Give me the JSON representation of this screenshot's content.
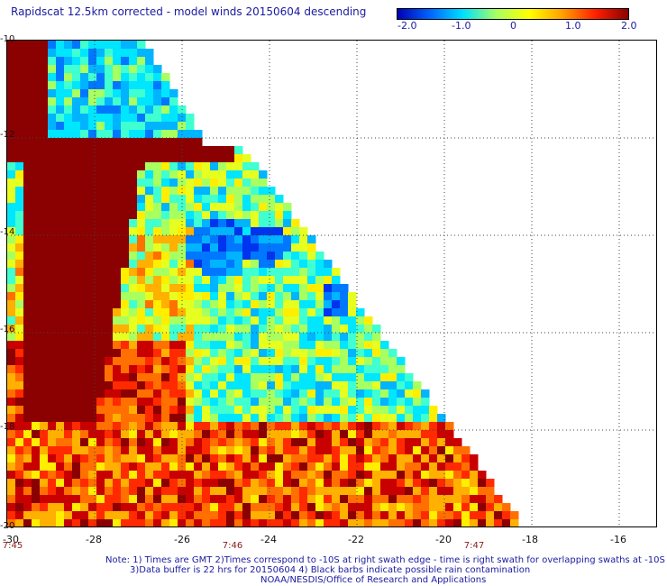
{
  "title": "Rapidscat 12.5km corrected - model winds 20150604 descending",
  "colorbar": {
    "ticks": [
      "-2.0",
      "-1.0",
      "0",
      "1.0",
      "2.0"
    ],
    "colors": [
      "#0000b4",
      "#0066ff",
      "#00e0ff",
      "#a8ff60",
      "#ffff00",
      "#ffa000",
      "#ff2000",
      "#8b0000"
    ]
  },
  "axes": {
    "x_ticks": [
      "-30",
      "-28",
      "-26",
      "-24",
      "-22",
      "-20",
      "-18",
      "-16"
    ],
    "y_ticks": [
      "-10",
      "-12",
      "-14",
      "-16",
      "-18",
      "-20"
    ],
    "times": [
      "7:45",
      "7:46",
      "7:47"
    ]
  },
  "notes": {
    "line1": "Note: 1) Times are GMT 2)Times correspond to -10S at right swath edge - time is right swath for overlapping swaths at -10S",
    "line2": "3)Data buffer is 22 hrs for 20150604 4) Black barbs indicate possible rain contamination",
    "line3": "NOAA/NESDIS/Office of Research and Applications"
  }
}
